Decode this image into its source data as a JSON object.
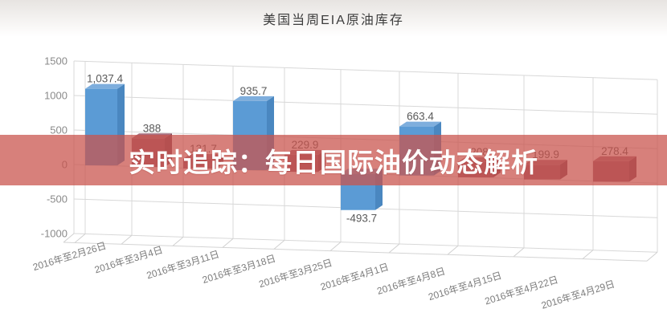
{
  "page": {
    "title": "美国当周EIA原油库存"
  },
  "banner": {
    "text": "实时追踪：每日国际油价动态解析",
    "bg_color": "#c9544d",
    "text_color": "#ffffff"
  },
  "chart_data": {
    "type": "bar",
    "title": "美国当周EIA原油库存",
    "xlabel": "",
    "ylabel": "",
    "ylim": [
      -1000,
      1500
    ],
    "y_ticks": [
      1500,
      1000,
      500,
      0,
      -500,
      -1000
    ],
    "grid": true,
    "style": "pseudo-3d-columns",
    "legend_position": "none",
    "categories": [
      "2016年至2月26日",
      "2016年至3月4日",
      "2016年至3月11日",
      "2016年至3月18日",
      "2016年至3月25日",
      "2016年至4月1日",
      "2016年至4月8日",
      "2016年至4月15日",
      "2016年至4月22日",
      "2016年至4月29日"
    ],
    "values": [
      1037.4,
      388,
      131.7,
      935.7,
      229.9,
      -493.7,
      663.4,
      208,
      199.9,
      278.4
    ],
    "value_labels": [
      "1,037.4",
      "388",
      "131.7",
      "935.7",
      "229.9",
      "-493.7",
      "663.4",
      "208",
      "199.9",
      "278.4"
    ],
    "bar_color_keys": [
      "blue",
      "maroon",
      "maroon",
      "blue",
      "maroon",
      "blue",
      "blue",
      "maroon",
      "maroon",
      "maroon"
    ],
    "palette": {
      "blue": {
        "front": "#5b9bd5",
        "side": "#4a87c0",
        "top": "#7eaedd"
      },
      "maroon": {
        "front": "#96596b",
        "side": "#7d4758",
        "top": "#a86f7f"
      }
    },
    "gridline_color": "#d8d8d8",
    "axis_label_color": "#8a8a8a",
    "value_label_color": "#5a5a5a"
  }
}
